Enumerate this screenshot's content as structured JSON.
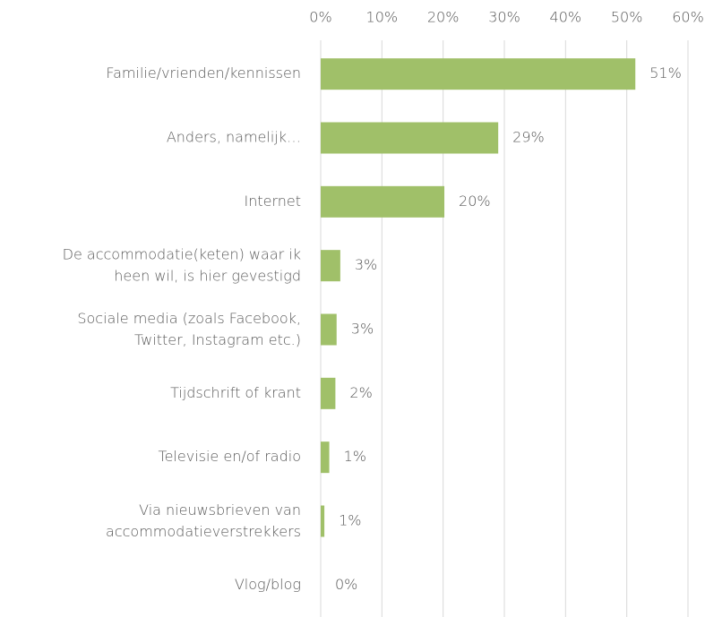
{
  "chart_data": {
    "type": "bar",
    "orientation": "horizontal",
    "categories": [
      "Familie/vrienden/kennissen",
      "Anders, namelijk…",
      "Internet",
      "De accommodatie(keten) waar ik\nheen wil, is hier gevestigd",
      "Sociale media (zoals Facebook,\nTwitter, Instagram etc.)",
      "Tijdschrift of krant",
      "Televisie en/of radio",
      "Via nieuwsbrieven van\naccommodatieverstrekkers",
      "Vlog/blog"
    ],
    "values": [
      51.4,
      29,
      20.2,
      3.2,
      2.6,
      2.4,
      1.4,
      0.6,
      0
    ],
    "value_labels": [
      "51%",
      "29%",
      "20%",
      "3%",
      "3%",
      "2%",
      "1%",
      "1%",
      "0%"
    ],
    "color": "#a0c069",
    "xlim": [
      0,
      60
    ],
    "xticks": [
      {
        "value": 0,
        "label": "0%"
      },
      {
        "value": 10,
        "label": "10%"
      },
      {
        "value": 20,
        "label": "20%"
      },
      {
        "value": 30,
        "label": "30%"
      },
      {
        "value": 40,
        "label": "40%"
      },
      {
        "value": 50,
        "label": "50%"
      },
      {
        "value": 60,
        "label": "60%"
      }
    ],
    "grid": true
  }
}
